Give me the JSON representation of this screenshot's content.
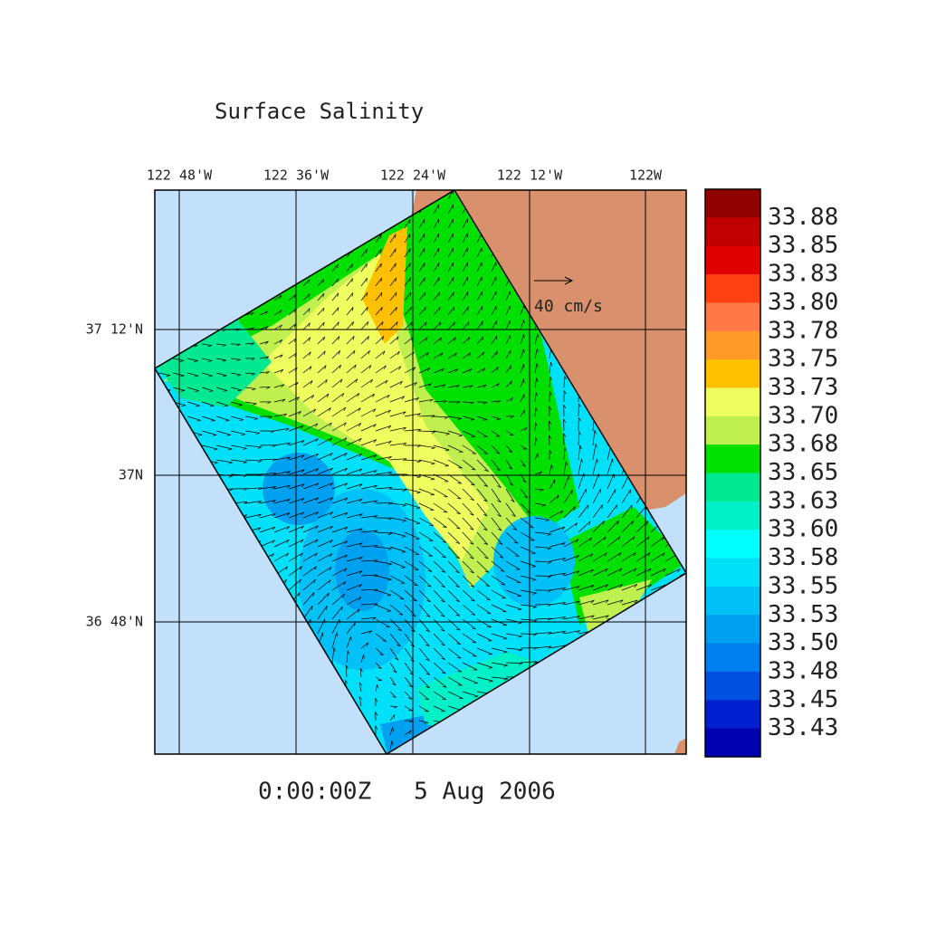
{
  "map": {
    "title": "Surface Salinity",
    "longitude_labels": [
      "122 48'W",
      "122 36'W",
      "122 24'W",
      "122 12'W",
      "122W"
    ],
    "latitude_labels": [
      "37 12'N",
      "37N",
      "36 48'N"
    ],
    "vector_scale_label": "40 cm/s",
    "time_label": "0:00:00Z   5 Aug 2006",
    "colorbar": {
      "labels": [
        "33.88",
        "33.85",
        "33.83",
        "33.80",
        "33.78",
        "33.75",
        "33.73",
        "33.70",
        "33.68",
        "33.65",
        "33.63",
        "33.60",
        "33.58",
        "33.55",
        "33.53",
        "33.50",
        "33.48",
        "33.45",
        "33.43"
      ],
      "colors": [
        "#900000",
        "#c00000",
        "#e00000",
        "#ff4010",
        "#ff7848",
        "#ff9a28",
        "#ffc000",
        "#f0ff60",
        "#c0f050",
        "#00e000",
        "#00e890",
        "#00f0c8",
        "#00ffff",
        "#00e0f8",
        "#00c0f8",
        "#00a0f0",
        "#0080f0",
        "#0050e0",
        "#0020d0",
        "#0000b0"
      ]
    }
  }
}
